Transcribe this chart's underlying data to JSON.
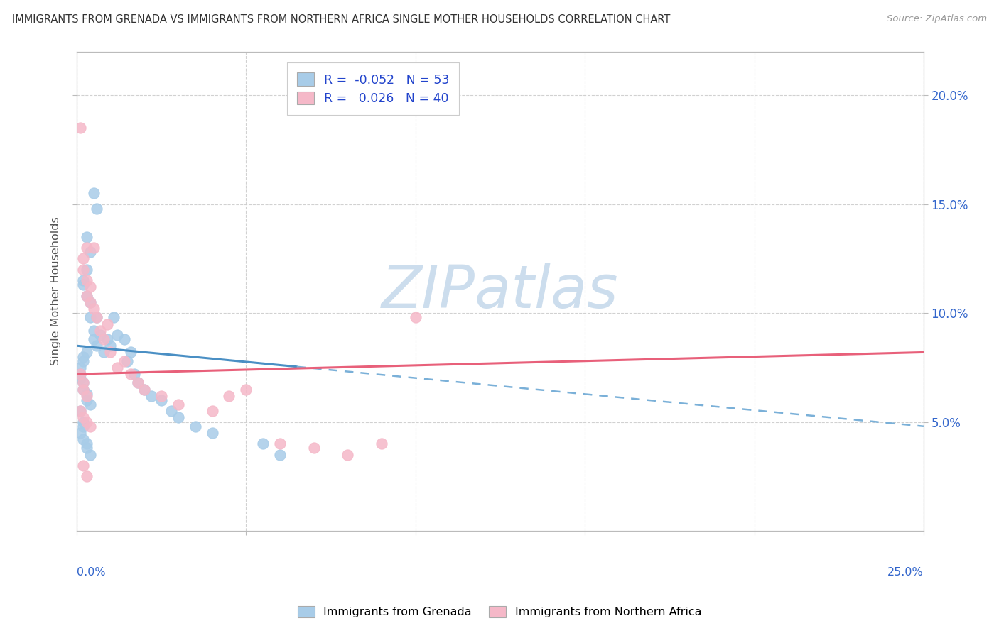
{
  "title": "IMMIGRANTS FROM GRENADA VS IMMIGRANTS FROM NORTHERN AFRICA SINGLE MOTHER HOUSEHOLDS CORRELATION CHART",
  "source": "Source: ZipAtlas.com",
  "ylabel": "Single Mother Households",
  "xlim": [
    0.0,
    0.25
  ],
  "ylim": [
    0.0,
    0.22
  ],
  "xticks": [
    0.0,
    0.05,
    0.1,
    0.15,
    0.2,
    0.25
  ],
  "yticks": [
    0.05,
    0.1,
    0.15,
    0.2
  ],
  "ytick_labels": [
    "5.0%",
    "10.0%",
    "15.0%",
    "20.0%"
  ],
  "xtick_labels_bottom": [
    "",
    "",
    "",
    "",
    "",
    ""
  ],
  "bottom_x_left": "0.0%",
  "bottom_x_right": "25.0%",
  "grenada_R": -0.052,
  "grenada_N": 53,
  "northern_africa_R": 0.026,
  "northern_africa_N": 40,
  "grenada_color": "#a8cce8",
  "northern_africa_color": "#f5b8c8",
  "grenada_line_solid_color": "#4a8fc4",
  "grenada_line_dash_color": "#7ab0d8",
  "northern_africa_line_color": "#e8607a",
  "watermark_text": "ZIPatlas",
  "watermark_color": "#ccdded",
  "legend_text_color": "#2244cc",
  "title_color": "#333333",
  "source_color": "#999999",
  "tick_color": "#3366cc",
  "grid_color": "#cccccc",
  "axis_color": "#bbbbbb",
  "grenada_x": [
    0.005,
    0.006,
    0.003,
    0.004,
    0.003,
    0.002,
    0.002,
    0.003,
    0.004,
    0.004,
    0.005,
    0.005,
    0.006,
    0.006,
    0.007,
    0.008,
    0.009,
    0.01,
    0.011,
    0.012,
    0.002,
    0.003,
    0.002,
    0.001,
    0.001,
    0.001,
    0.002,
    0.002,
    0.003,
    0.003,
    0.004,
    0.014,
    0.016,
    0.015,
    0.017,
    0.018,
    0.02,
    0.022,
    0.025,
    0.028,
    0.03,
    0.035,
    0.04,
    0.055,
    0.06,
    0.001,
    0.002,
    0.002,
    0.001,
    0.002,
    0.003,
    0.003,
    0.004
  ],
  "grenada_y": [
    0.155,
    0.148,
    0.135,
    0.128,
    0.12,
    0.115,
    0.113,
    0.108,
    0.105,
    0.098,
    0.092,
    0.088,
    0.085,
    0.098,
    0.09,
    0.082,
    0.088,
    0.085,
    0.098,
    0.09,
    0.08,
    0.082,
    0.078,
    0.075,
    0.072,
    0.07,
    0.068,
    0.065,
    0.063,
    0.06,
    0.058,
    0.088,
    0.082,
    0.078,
    0.072,
    0.068,
    0.065,
    0.062,
    0.06,
    0.055,
    0.052,
    0.048,
    0.045,
    0.04,
    0.035,
    0.055,
    0.05,
    0.048,
    0.045,
    0.042,
    0.04,
    0.038,
    0.035
  ],
  "northern_africa_x": [
    0.001,
    0.002,
    0.003,
    0.002,
    0.003,
    0.004,
    0.005,
    0.003,
    0.004,
    0.005,
    0.006,
    0.007,
    0.008,
    0.009,
    0.01,
    0.012,
    0.014,
    0.016,
    0.018,
    0.02,
    0.025,
    0.03,
    0.04,
    0.045,
    0.05,
    0.06,
    0.07,
    0.08,
    0.09,
    0.1,
    0.001,
    0.002,
    0.002,
    0.003,
    0.001,
    0.002,
    0.003,
    0.004,
    0.002,
    0.003
  ],
  "northern_africa_y": [
    0.185,
    0.125,
    0.13,
    0.12,
    0.115,
    0.112,
    0.13,
    0.108,
    0.105,
    0.102,
    0.098,
    0.092,
    0.088,
    0.095,
    0.082,
    0.075,
    0.078,
    0.072,
    0.068,
    0.065,
    0.062,
    0.058,
    0.055,
    0.062,
    0.065,
    0.04,
    0.038,
    0.035,
    0.04,
    0.098,
    0.072,
    0.068,
    0.065,
    0.062,
    0.055,
    0.052,
    0.05,
    0.048,
    0.03,
    0.025
  ]
}
